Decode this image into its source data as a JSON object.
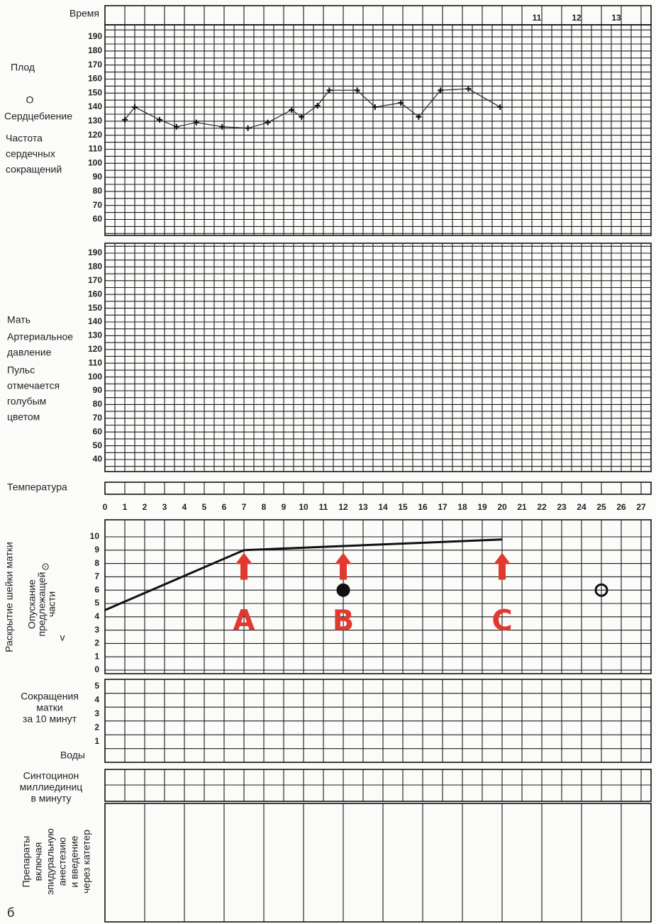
{
  "time_header": {
    "label": "Время",
    "hours": [
      "11",
      "12",
      "13"
    ]
  },
  "fetal": {
    "title": "Плод",
    "symbol": "O",
    "heartbeat": "Сердцебиение",
    "rate": [
      "Частота",
      "сердечных",
      "сокращений"
    ],
    "yticks": [
      190,
      180,
      170,
      160,
      150,
      140,
      130,
      120,
      110,
      100,
      90,
      80,
      70,
      60
    ],
    "heart_rate": {
      "hours": [
        1,
        1.5,
        2.75,
        3.6,
        4.6,
        5.9,
        7.2,
        8.2,
        9.4,
        9.9,
        10.7,
        11.3,
        12.7,
        13.6,
        14.9,
        15.8,
        16.9,
        18.3,
        19.9
      ],
      "bpm": [
        131,
        140,
        131,
        126,
        129,
        126,
        125,
        129,
        138,
        133,
        141,
        152,
        152,
        140,
        143,
        133,
        152,
        153,
        140
      ]
    }
  },
  "maternal": {
    "title": "Мать",
    "pressure": [
      "Артериальное",
      "давление"
    ],
    "pulse": [
      "Пульс",
      "отмечается",
      "голубым",
      "цветом"
    ],
    "yticks": [
      190,
      180,
      170,
      160,
      150,
      140,
      130,
      120,
      110,
      100,
      90,
      80,
      70,
      60,
      50,
      40
    ]
  },
  "temperature": "Температура",
  "hours": [
    0,
    1,
    2,
    3,
    4,
    5,
    6,
    7,
    8,
    9,
    10,
    11,
    12,
    13,
    14,
    15,
    16,
    17,
    18,
    19,
    20,
    21,
    22,
    23,
    24,
    25,
    26,
    27
  ],
  "dilation": {
    "label": "Раскрытие шейки матки",
    "symbol": "⊙",
    "descent": [
      "Опускание",
      "предлежащей",
      "части"
    ],
    "descent_symbol": "v",
    "yticks": [
      10,
      9,
      8,
      7,
      6,
      5,
      4,
      3,
      2,
      1,
      0
    ],
    "cervix": {
      "hours": [
        0,
        7,
        20
      ],
      "cm": [
        4.5,
        9,
        9.8
      ]
    },
    "descent_points": {
      "hours": [
        12,
        25
      ],
      "values": [
        6,
        6
      ]
    },
    "annotations": [
      {
        "hour": 7,
        "text": "A"
      },
      {
        "hour": 12,
        "text": "B"
      },
      {
        "hour": 20,
        "text": "C"
      }
    ]
  },
  "contractions": {
    "label": [
      "Сокращения",
      "матки",
      "за 10 минут"
    ],
    "yticks": [
      5,
      4,
      3,
      2,
      1
    ],
    "waters": "Воды"
  },
  "oxytocin": [
    "Синтоцинон",
    "миллиединиц",
    "в минуту"
  ],
  "drugs": [
    "Препараты",
    "включая",
    "эпидуральную",
    "анестезию",
    "и введение",
    "через катетер"
  ],
  "figure_label": "б"
}
